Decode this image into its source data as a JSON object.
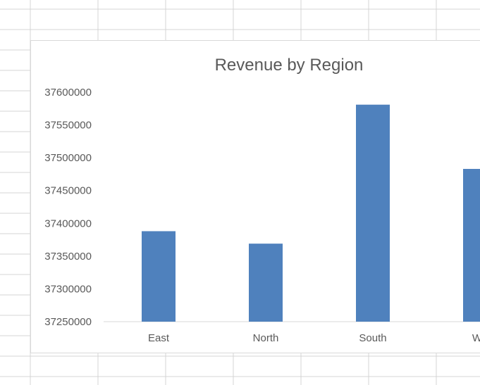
{
  "chart_data": {
    "type": "bar",
    "title": "Revenue by Region",
    "categories": [
      "East",
      "North",
      "South",
      "We"
    ],
    "values": [
      37388000,
      37369000,
      37581000,
      37483000
    ],
    "ylim": [
      37250000,
      37600000
    ],
    "yticks": [
      "37600000",
      "37550000",
      "37500000",
      "37450000",
      "37400000",
      "37350000",
      "37300000",
      "37250000"
    ],
    "xlabel": "",
    "ylabel": "",
    "legend": "none",
    "grid": false,
    "bar_color": "#4f81bd"
  }
}
